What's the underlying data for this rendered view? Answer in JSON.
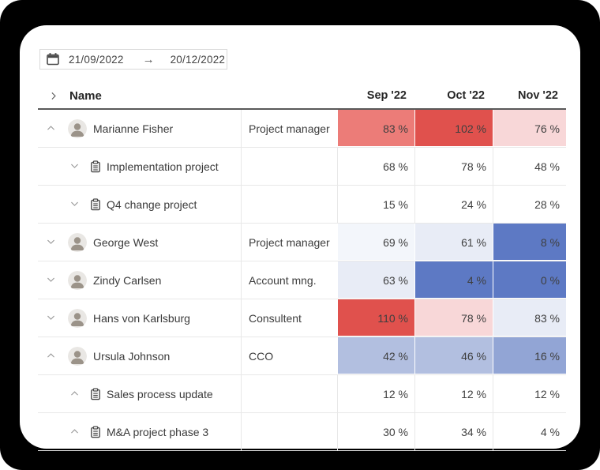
{
  "app": {
    "canvas_bg": "#000000",
    "card_bg": "#ffffff",
    "grid_line": "#e8e8e8",
    "header_rule": "#595959"
  },
  "date_range": {
    "start": "21/09/2022",
    "end": "20/12/2022",
    "arrow_glyph": "→",
    "icons": [
      "calendar-icon",
      "arrow-right-icon"
    ]
  },
  "table": {
    "name_header": "Name",
    "months": [
      "Sep '22",
      "Oct '22",
      "Nov '22"
    ],
    "palette": {
      "overload_strong": "#E0514D",
      "overload_medium": "#EC7C78",
      "overload_light": "#F8D7D8",
      "under_near_white": "#F3F6FB",
      "under_light": "#E8ECF6",
      "under_periwinkle": "#B2BFE0",
      "under_periwinkle_dark": "#92A5D5",
      "under_strong_blue": "#5D79C4"
    },
    "rows": [
      {
        "type": "person",
        "chevron": "up",
        "name": "Marianne Fisher",
        "role": "Project manager",
        "values": [
          "83 %",
          "102 %",
          "76 %"
        ],
        "cell_colors": [
          "#EC7C78",
          "#E0514D",
          "#F8D7D8"
        ]
      },
      {
        "type": "project",
        "chevron": "down",
        "name": "Implementation project",
        "role": "",
        "values": [
          "68 %",
          "78 %",
          "48 %"
        ],
        "cell_colors": [
          "",
          "",
          ""
        ]
      },
      {
        "type": "project",
        "chevron": "down",
        "name": "Q4 change project",
        "role": "",
        "values": [
          "15 %",
          "24 %",
          "28 %"
        ],
        "cell_colors": [
          "",
          "",
          ""
        ]
      },
      {
        "type": "person",
        "chevron": "down",
        "name": "George West",
        "role": "Project manager",
        "values": [
          "69 %",
          "61 %",
          "8 %"
        ],
        "cell_colors": [
          "#F3F6FB",
          "#E8ECF6",
          "#5D79C4"
        ]
      },
      {
        "type": "person",
        "chevron": "down",
        "name": "Zindy Carlsen",
        "role": "Account mng.",
        "values": [
          "63 %",
          "4 %",
          "0 %"
        ],
        "cell_colors": [
          "#E8ECF6",
          "#5D79C4",
          "#5D79C4"
        ]
      },
      {
        "type": "person",
        "chevron": "down",
        "name": "Hans von Karlsburg",
        "role": "Consultent",
        "values": [
          "110 %",
          "78 %",
          "83 %"
        ],
        "cell_colors": [
          "#E0514D",
          "#F8D7D8",
          "#E8ECF6"
        ]
      },
      {
        "type": "person",
        "chevron": "up",
        "name": "Ursula Johnson",
        "role": "CCO",
        "values": [
          "42 %",
          "46 %",
          "16 %"
        ],
        "cell_colors": [
          "#B2BFE0",
          "#B2BFE0",
          "#92A5D5"
        ]
      },
      {
        "type": "project",
        "chevron": "up",
        "name": "Sales process update",
        "role": "",
        "values": [
          "12 %",
          "12 %",
          "12 %"
        ],
        "cell_colors": [
          "",
          "",
          ""
        ]
      },
      {
        "type": "project",
        "chevron": "up",
        "name": "M&A project phase 3",
        "role": "",
        "values": [
          "30 %",
          "34 %",
          "4 %"
        ],
        "cell_colors": [
          "",
          "",
          ""
        ]
      }
    ]
  }
}
